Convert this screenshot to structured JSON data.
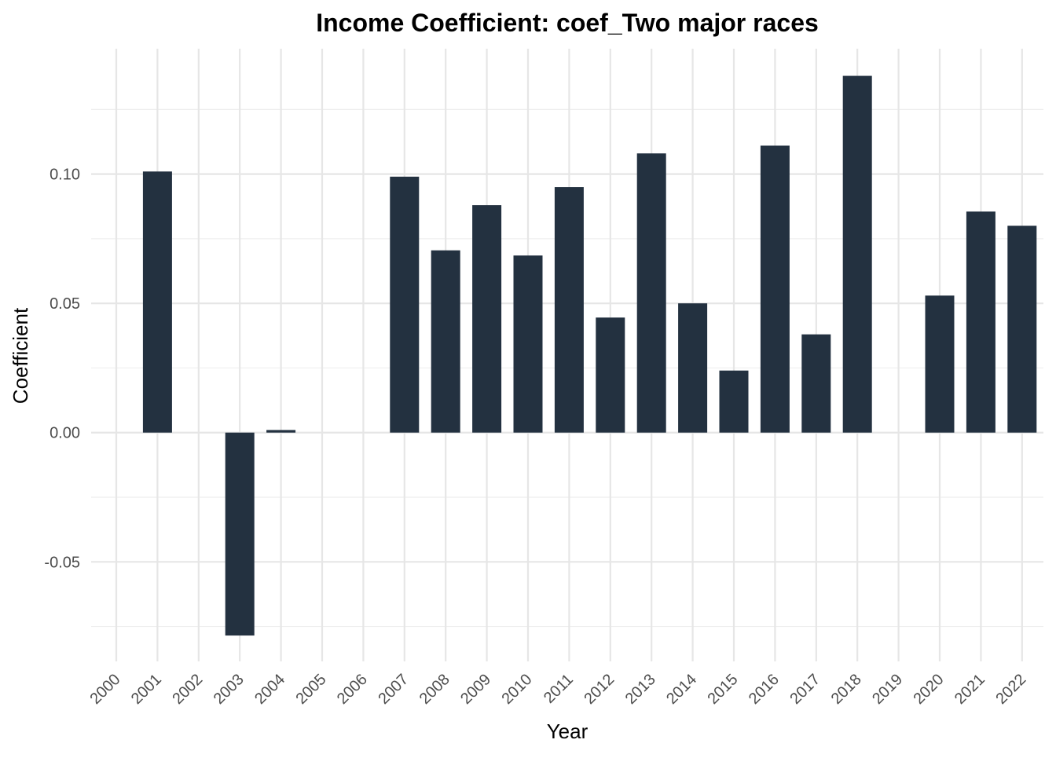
{
  "chart_data": {
    "type": "bar",
    "title": "Income Coefficient: coef_Two major races",
    "xlabel": "Year",
    "ylabel": "Coefficient",
    "categories": [
      "2000",
      "2001",
      "2002",
      "2003",
      "2004",
      "2005",
      "2006",
      "2007",
      "2008",
      "2009",
      "2010",
      "2011",
      "2012",
      "2013",
      "2014",
      "2015",
      "2016",
      "2017",
      "2018",
      "2019",
      "2020",
      "2021",
      "2022"
    ],
    "values": [
      null,
      0.101,
      null,
      -0.0785,
      0.001,
      null,
      null,
      0.099,
      0.0705,
      0.088,
      0.0685,
      0.095,
      0.0445,
      0.108,
      0.05,
      0.024,
      0.111,
      0.038,
      0.138,
      null,
      0.053,
      0.0855,
      0.08
    ],
    "ylim": [
      -0.0885,
      0.1485
    ],
    "yticks": [
      -0.05,
      0.0,
      0.05,
      0.1
    ],
    "ytick_labels": [
      "-0.05",
      "0.00",
      "0.05",
      "0.10"
    ],
    "grid": true,
    "legend": "none",
    "colors": {
      "bar": "#233140",
      "grid": "#e6e6e6",
      "background": "#ffffff"
    }
  }
}
